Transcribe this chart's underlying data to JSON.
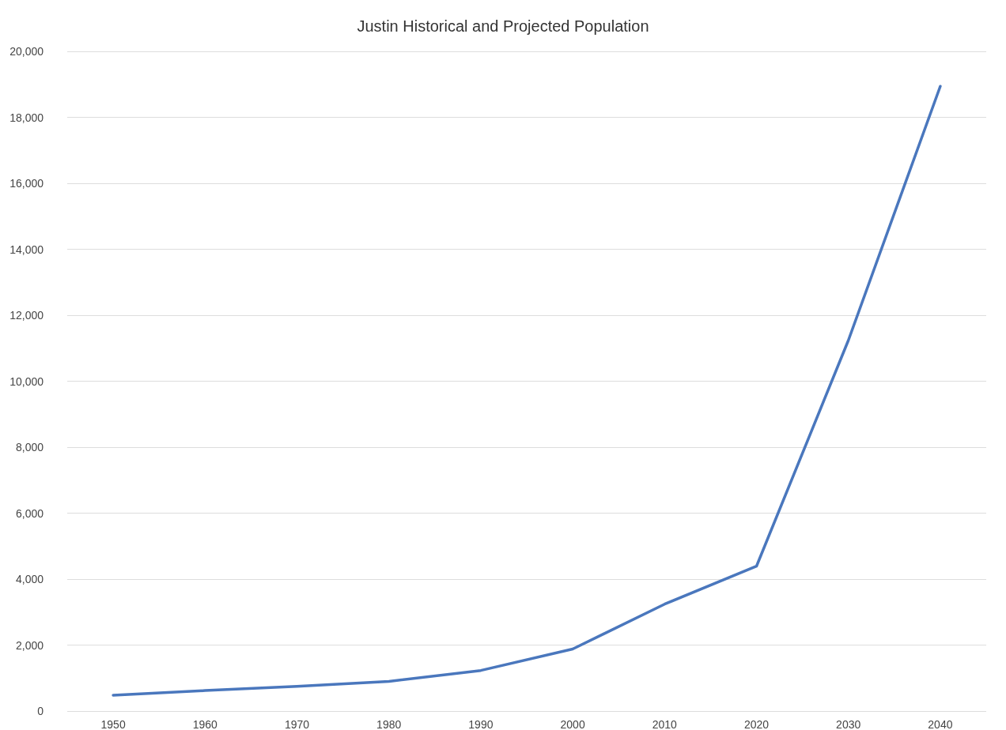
{
  "chart_data": {
    "type": "line",
    "title": "Justin Historical and Projected Population",
    "categories": [
      "1950",
      "1960",
      "1970",
      "1980",
      "1990",
      "2000",
      "2010",
      "2020",
      "2030",
      "2040"
    ],
    "series": [
      {
        "color": "#4a77bd",
        "values": [
          480,
          620,
          750,
          900,
          1230,
          1880,
          3240,
          4390,
          11240,
          18940
        ]
      }
    ],
    "ylim": [
      0,
      20000
    ],
    "yticks": [
      0,
      {
        "value": 2000,
        "label": "2,000"
      },
      {
        "value": 4000,
        "label": "4,000"
      },
      {
        "value": 6000,
        "label": "6,000"
      },
      {
        "value": 8000,
        "label": "8,000"
      },
      {
        "value": 10000,
        "label": "10,000"
      },
      {
        "value": 12000,
        "label": "12,000"
      },
      {
        "value": 14000,
        "label": "14,000"
      },
      {
        "value": 16000,
        "label": "16,000"
      },
      {
        "value": 18000,
        "label": "18,000"
      },
      {
        "value": 20000,
        "label": "20,000"
      }
    ],
    "grid": "y",
    "marker": "none",
    "line_style": "solid"
  }
}
